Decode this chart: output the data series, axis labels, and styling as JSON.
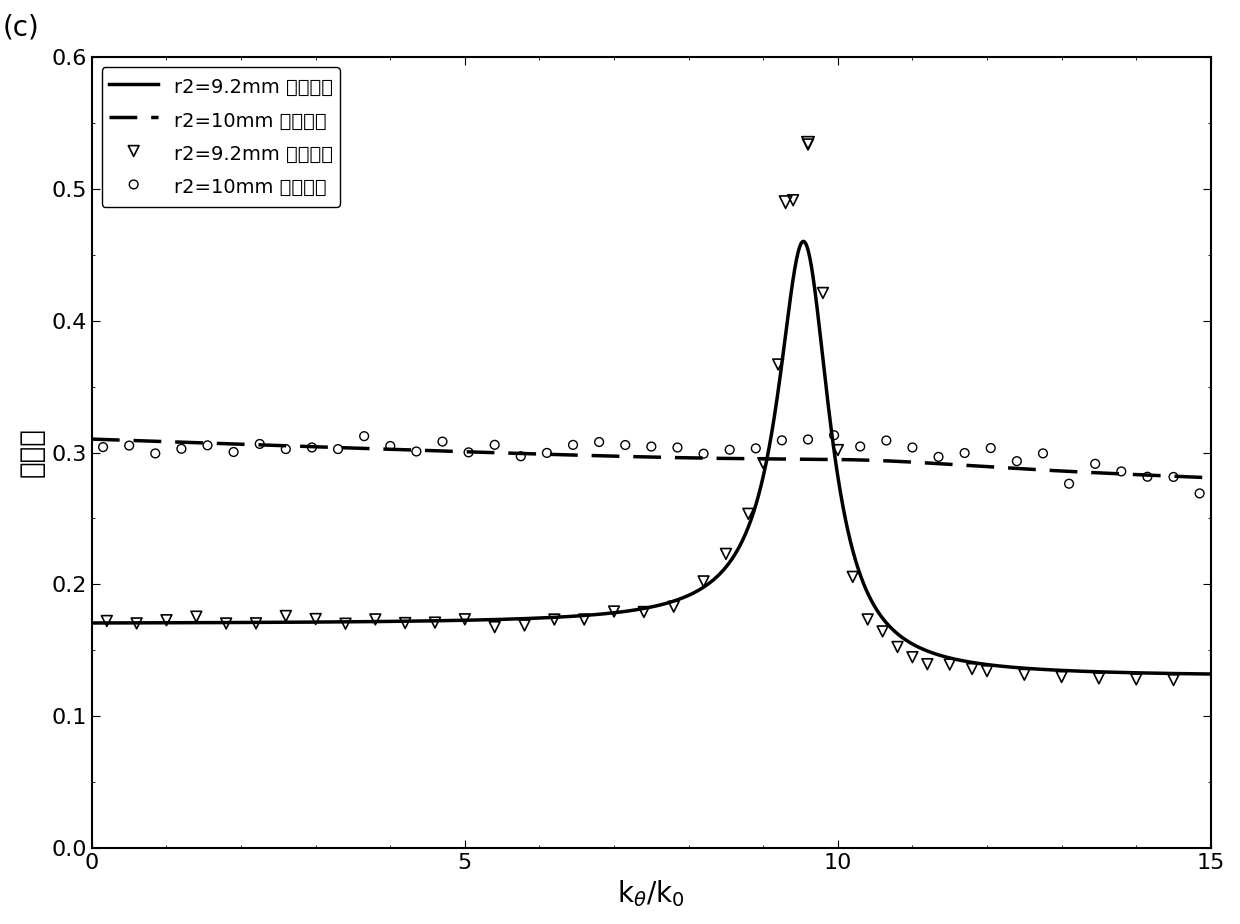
{
  "title": "(c)",
  "xlabel": "kθ/k₀",
  "ylabel": "透过率",
  "xlim": [
    0,
    15
  ],
  "ylim": [
    0,
    0.6
  ],
  "yticks": [
    0,
    0.1,
    0.2,
    0.3,
    0.4,
    0.5,
    0.6
  ],
  "xticks": [
    0,
    5,
    10,
    15
  ],
  "legend_entries": [
    "r2=9.2mm 理论推导",
    "r2=10mm 理论推导",
    "r2=9.2mm 仿真验证",
    "r2=10mm 仿真验证"
  ],
  "background_color": "#ffffff",
  "line_color": "#000000"
}
